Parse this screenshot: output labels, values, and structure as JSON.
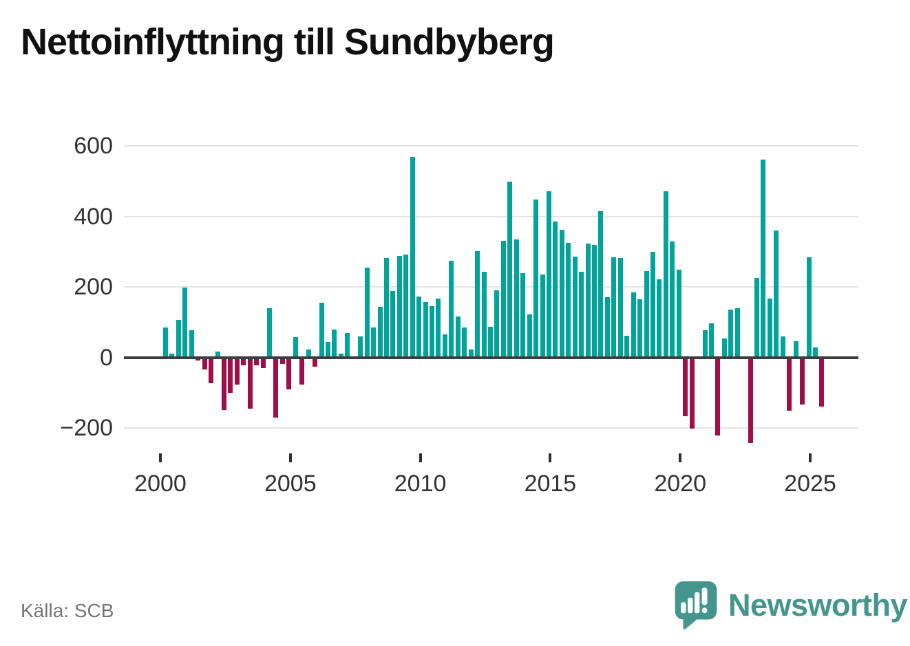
{
  "title": "Nettoinflyttning till Sundbyberg",
  "source": "Källa: SCB",
  "branding": {
    "logo_text": "Newsworthy",
    "logo_icon": "newsworthy-speech-bubble-chart-icon"
  },
  "colors": {
    "positive_bar": "#00a49a",
    "negative_bar": "#a00d49",
    "grid": "#e4e4e4",
    "zero_line": "#3d3d3d",
    "axis_text": "#333333",
    "source_text": "#757575",
    "brand_teal": "#43958e",
    "title_text": "#111111"
  },
  "chart_data": {
    "type": "bar",
    "title": "Nettoinflyttning till Sundbyberg",
    "frequency": "quarterly",
    "x_start": "2000 Q1",
    "x_end": "2025 Q2",
    "x_tick_labels": [
      "2000",
      "2005",
      "2010",
      "2015",
      "2020",
      "2025"
    ],
    "x_tick_quarter_indices": [
      0,
      20,
      40,
      60,
      80,
      100
    ],
    "y_ticks": [
      600,
      400,
      200,
      0,
      -200
    ],
    "ylim": [
      -260,
      640
    ],
    "grid": "horizontal",
    "legend": "none",
    "values": [
      85,
      11,
      106,
      198,
      77,
      -8,
      -35,
      -73,
      16,
      -150,
      -100,
      -77,
      -22,
      -146,
      -22,
      -30,
      139,
      -170,
      -19,
      -90,
      58,
      -78,
      23,
      -27,
      155,
      43,
      79,
      11,
      69,
      -5,
      60,
      255,
      85,
      143,
      282,
      189,
      287,
      292,
      569,
      172,
      158,
      146,
      166,
      66,
      274,
      117,
      84,
      23,
      302,
      242,
      87,
      190,
      330,
      498,
      334,
      239,
      121,
      448,
      235,
      472,
      385,
      362,
      325,
      286,
      242,
      322,
      320,
      415,
      171,
      283,
      281,
      61,
      184,
      165,
      244,
      299,
      221,
      471,
      328,
      248,
      -166,
      -202,
      0,
      77,
      97,
      -221,
      53,
      135,
      139,
      0,
      -242,
      226,
      561,
      166,
      360,
      60,
      -151,
      45,
      -134,
      283,
      28,
      -140
    ]
  }
}
